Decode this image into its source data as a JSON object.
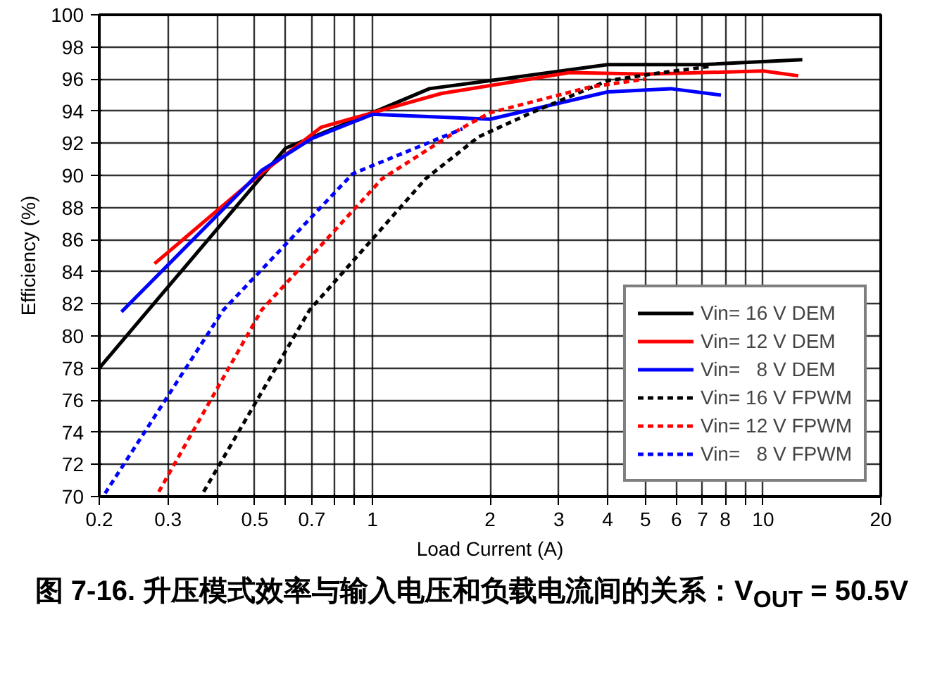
{
  "chart_data": {
    "type": "line",
    "title": "图 7-16. 升压模式效率与输入电压和负载电流间的关系：V$_{OUT}$ = 50.5V",
    "xlabel": "Load Current (A)",
    "ylabel": "Efficiency (%)",
    "log": "x",
    "grid": true,
    "legend": "bottom right",
    "marker": "none",
    "xlim": [
      0.2,
      20
    ],
    "ylim": [
      70,
      100
    ],
    "xticks": [
      0.2,
      0.3,
      {
        "value": 0.4,
        "label": null
      },
      0.5,
      {
        "value": 0.6,
        "label": null
      },
      0.7,
      {
        "value": 0.8,
        "label": null
      },
      {
        "value": 0.9,
        "label": null
      },
      1,
      2,
      3,
      4,
      5,
      6,
      7,
      8,
      {
        "value": 9,
        "label": null
      },
      10,
      20
    ],
    "yticks": [
      70,
      72,
      74,
      76,
      78,
      80,
      82,
      84,
      86,
      88,
      90,
      92,
      94,
      96,
      98,
      100
    ],
    "series": [
      {
        "name": "Vin= 16 V DEM",
        "color": "#000000",
        "line_style": "solid",
        "x": [
          0.2,
          0.6,
          1,
          1.4,
          2,
          4,
          7,
          12.6
        ],
        "values": [
          78.0,
          91.7,
          93.9,
          95.4,
          95.9,
          96.9,
          96.9,
          97.2
        ]
      },
      {
        "name": "Vin= 12 V DEM",
        "color": "#ff0000",
        "line_style": "solid",
        "x": [
          0.277,
          0.5,
          0.74,
          1,
          1.5,
          3.2,
          5,
          10,
          12.3
        ],
        "values": [
          84.5,
          89.8,
          93.0,
          93.9,
          95.1,
          96.4,
          96.3,
          96.5,
          96.2
        ]
      },
      {
        "name": "Vin=   8 V DEM",
        "color": "#0000ff",
        "line_style": "solid",
        "x": [
          0.228,
          0.52,
          0.7,
          1,
          2,
          4,
          5.8,
          7.8
        ],
        "values": [
          81.5,
          90.3,
          92.3,
          93.8,
          93.5,
          95.2,
          95.4,
          95.0
        ]
      },
      {
        "name": "Vin= 16 V FPWM",
        "color": "#000000",
        "line_style": "dashed",
        "x": [
          0.37,
          0.69,
          1.37,
          1.87,
          2.55,
          4.0,
          5.5,
          7.4
        ],
        "values": [
          70.3,
          81.6,
          89.8,
          92.4,
          93.9,
          95.9,
          96.4,
          96.8
        ]
      },
      {
        "name": "Vin= 12 V FPWM",
        "color": "#ff0000",
        "line_style": "dashed",
        "x": [
          0.284,
          0.52,
          1.06,
          1.68,
          2,
          3.6,
          5
        ],
        "values": [
          70.3,
          81.6,
          89.8,
          92.9,
          93.9,
          95.5,
          96.0
        ]
      },
      {
        "name": "Vin=   8 V FPWM",
        "color": "#0000ff",
        "line_style": "dashed",
        "x": [
          0.207,
          0.415,
          0.89,
          1.7
        ],
        "values": [
          70.2,
          81.6,
          90.1,
          92.9
        ]
      }
    ]
  }
}
